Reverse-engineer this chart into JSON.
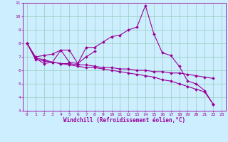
{
  "title": "",
  "xlabel": "Windchill (Refroidissement éolien,°C)",
  "ylabel": "",
  "bg_color": "#cceeff",
  "grid_color": "#99ccbb",
  "line_color": "#990099",
  "xlim": [
    -0.5,
    23.5
  ],
  "ylim": [
    3,
    11
  ],
  "xticks": [
    0,
    1,
    2,
    3,
    4,
    5,
    6,
    7,
    8,
    9,
    10,
    11,
    12,
    13,
    14,
    15,
    16,
    17,
    18,
    19,
    20,
    21,
    22,
    23
  ],
  "yticks": [
    3,
    4,
    5,
    6,
    7,
    8,
    9,
    10,
    11
  ],
  "series": [
    {
      "x": [
        0,
        1,
        2,
        3,
        4,
        5,
        6,
        7,
        8,
        9,
        10,
        11,
        12,
        13,
        14,
        15,
        16,
        17,
        18,
        19,
        20,
        21,
        22
      ],
      "y": [
        8.0,
        6.9,
        6.8,
        6.6,
        7.5,
        7.5,
        6.5,
        7.7,
        7.7,
        8.1,
        8.5,
        8.6,
        9.0,
        9.2,
        10.8,
        8.7,
        7.3,
        7.1,
        6.3,
        5.2,
        5.0,
        4.5,
        3.5
      ]
    },
    {
      "x": [
        0,
        1,
        2,
        3,
        4,
        5,
        6,
        7,
        8
      ],
      "y": [
        8.0,
        7.0,
        7.1,
        7.2,
        7.5,
        6.6,
        6.5,
        7.0,
        7.4
      ]
    },
    {
      "x": [
        0,
        1,
        2,
        3,
        4,
        5,
        6,
        7,
        8,
        9,
        10,
        11,
        12,
        13,
        14,
        15,
        16,
        17,
        18,
        19,
        20,
        21,
        22
      ],
      "y": [
        8.0,
        6.9,
        6.5,
        6.6,
        6.5,
        6.5,
        6.4,
        6.4,
        6.3,
        6.2,
        6.2,
        6.1,
        6.1,
        6.0,
        6.0,
        5.9,
        5.9,
        5.8,
        5.8,
        5.7,
        5.6,
        5.5,
        5.4
      ]
    },
    {
      "x": [
        0,
        1,
        2,
        3,
        4,
        5,
        6,
        7,
        8,
        9,
        10,
        11,
        12,
        13,
        14,
        15,
        16,
        17,
        18,
        19,
        20,
        21,
        22
      ],
      "y": [
        8.0,
        6.8,
        6.7,
        6.6,
        6.5,
        6.4,
        6.3,
        6.2,
        6.2,
        6.1,
        6.0,
        5.9,
        5.8,
        5.7,
        5.6,
        5.5,
        5.3,
        5.2,
        5.0,
        4.8,
        4.6,
        4.4,
        3.5
      ]
    }
  ],
  "marker": "D",
  "marker_size": 2,
  "linewidth": 0.8,
  "tick_fontsize": 4.5,
  "xlabel_fontsize": 5.5
}
